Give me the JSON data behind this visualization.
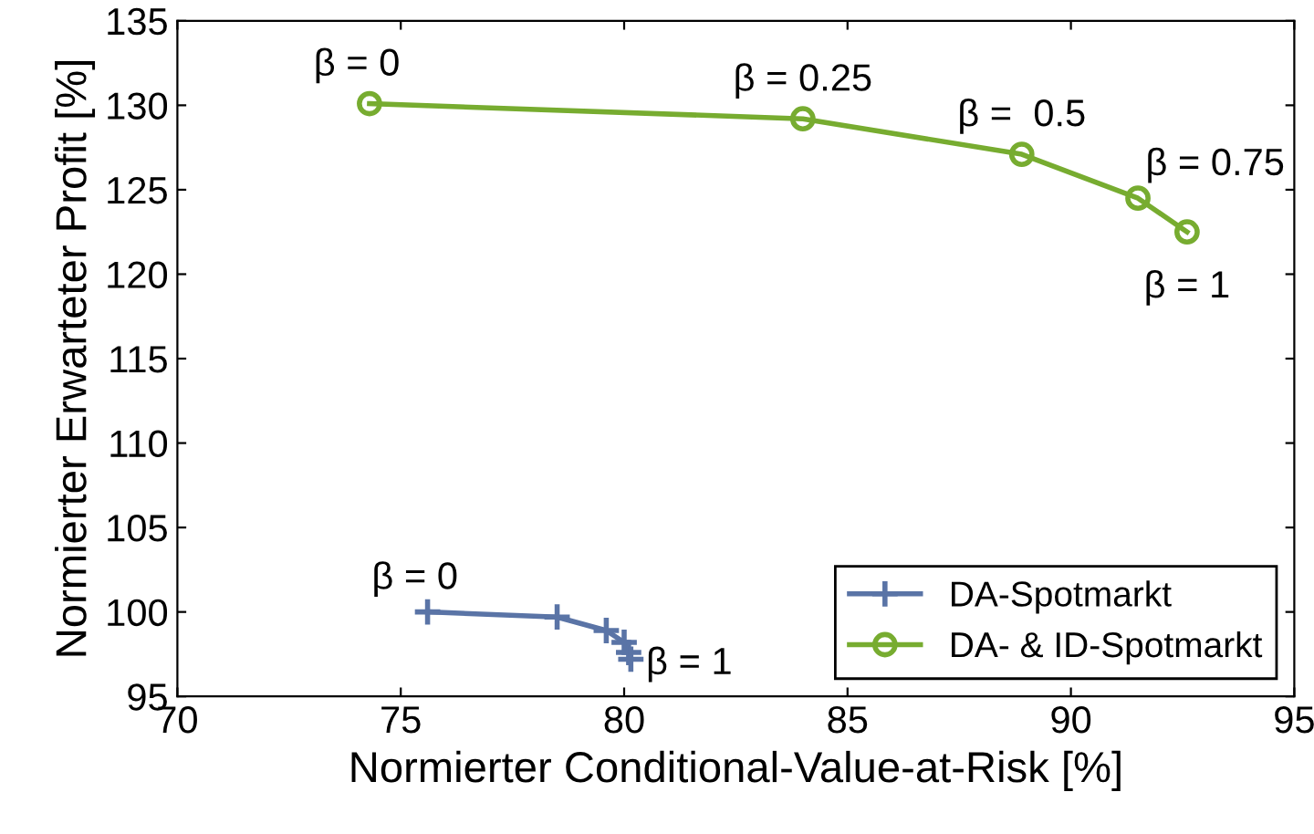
{
  "chart_data": {
    "type": "line",
    "xlabel": "Normierter Conditional-Value-at-Risk [%]",
    "ylabel": "Normierter Erwarteter Profit [%]",
    "series": [
      {
        "name": "DA-Spotmarkt",
        "color": "#5a74a6",
        "marker": "cross",
        "x": [
          75.6,
          78.5,
          79.6,
          80.0,
          80.1,
          80.15
        ],
        "values": [
          100.0,
          99.7,
          98.9,
          98.2,
          97.6,
          97.2
        ]
      },
      {
        "name": "DA- & ID-Spotmarkt",
        "color": "#77ac30",
        "marker": "circle",
        "x": [
          74.3,
          84.0,
          88.9,
          91.5,
          92.6
        ],
        "values": [
          130.1,
          129.2,
          127.1,
          124.5,
          122.5
        ]
      }
    ],
    "annotations": [
      {
        "text": "β = 0",
        "x": 75.6,
        "y": 100.0
      },
      {
        "text": "β = 1",
        "x": 80.15,
        "y": 97.2
      },
      {
        "text": "β = 0",
        "x": 74.3,
        "y": 130.1
      },
      {
        "text": "β = 0.25",
        "x": 84.0,
        "y": 129.2
      },
      {
        "text": "β =  0.5",
        "x": 88.9,
        "y": 127.1
      },
      {
        "text": "β = 0.75",
        "x": 91.5,
        "y": 124.5
      },
      {
        "text": "β = 1",
        "x": 92.6,
        "y": 122.5
      }
    ],
    "xlim": [
      70,
      95
    ],
    "xticks": [
      70,
      75,
      80,
      85,
      90,
      95
    ],
    "ylim": [
      95,
      135
    ],
    "yticks": [
      95,
      100,
      105,
      110,
      115,
      120,
      125,
      130,
      135
    ],
    "grid": false,
    "legend": "bottom right"
  }
}
